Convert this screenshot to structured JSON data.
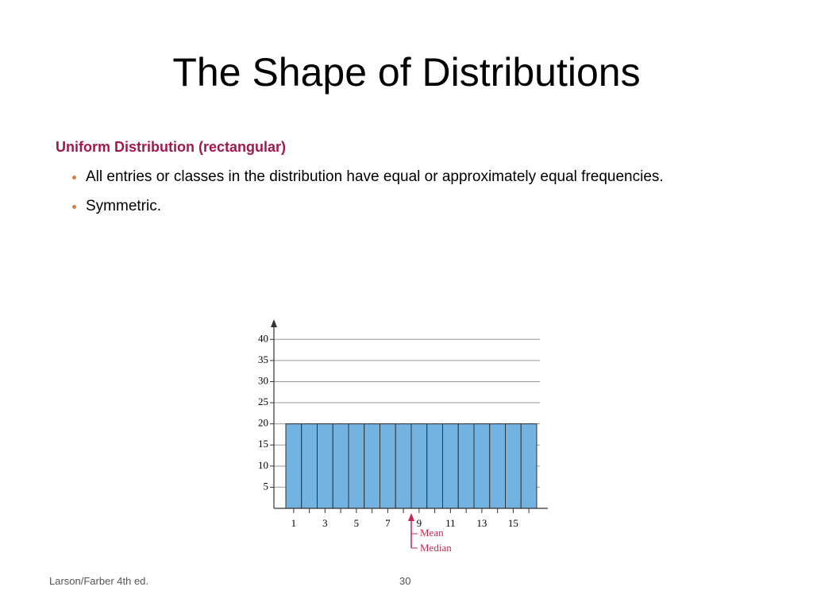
{
  "slide": {
    "title": "The Shape of Distributions",
    "heading": "Uniform Distribution (rectangular)",
    "bullets": [
      "All entries or classes in the distribution have equal or approximately equal frequencies.",
      "Symmetric."
    ],
    "footer": "Larson/Farber 4th ed.",
    "page_number": "30"
  },
  "chart_data": {
    "type": "bar",
    "categories": [
      "1",
      null,
      "3",
      null,
      "5",
      null,
      "7",
      null,
      "9",
      null,
      "11",
      null,
      "13",
      null,
      "15",
      null
    ],
    "values": [
      20,
      20,
      20,
      20,
      20,
      20,
      20,
      20,
      20,
      20,
      20,
      20,
      20,
      20,
      20,
      20
    ],
    "color": "#72b3e2",
    "ylim": [
      0,
      44
    ],
    "yticks": [
      5,
      10,
      15,
      20,
      25,
      30,
      35,
      40
    ],
    "grid": true,
    "annotations": [
      "Mean",
      "Median"
    ]
  }
}
